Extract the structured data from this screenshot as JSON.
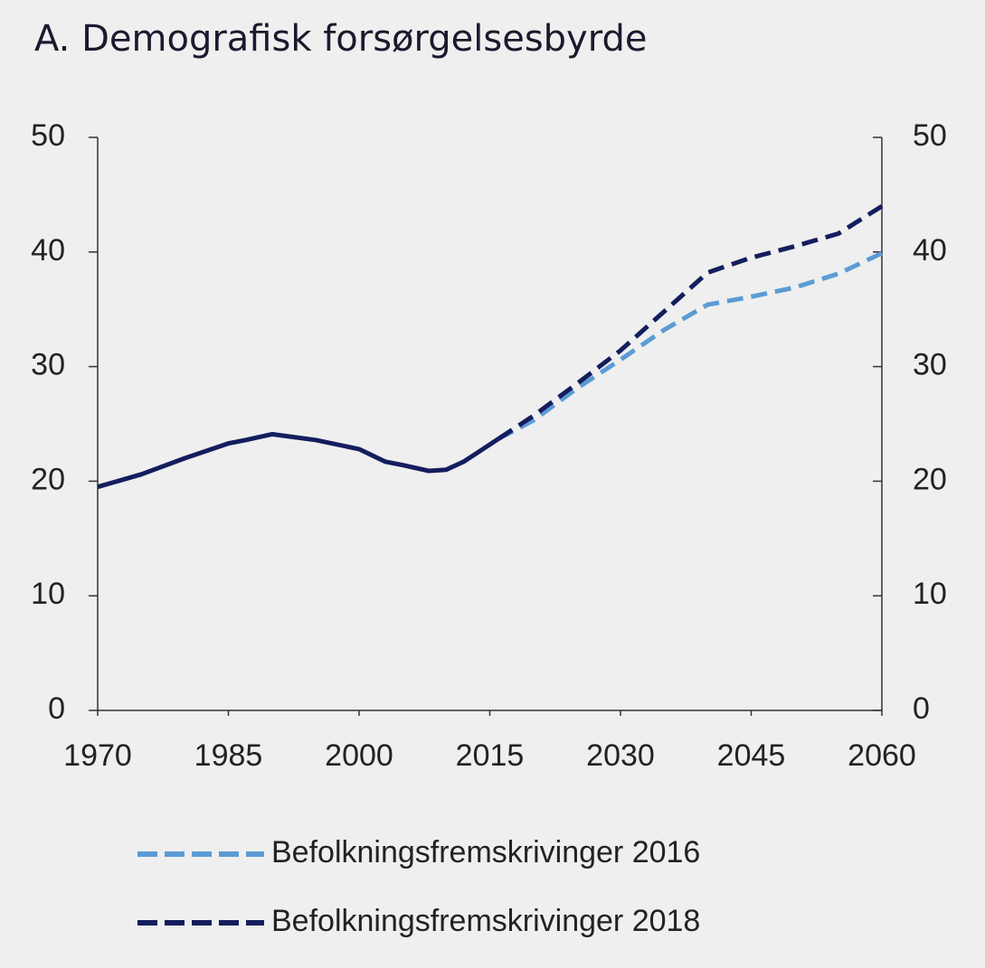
{
  "chart_data": {
    "type": "line",
    "title": "A.  Demografisk forsørgelsesbyrde",
    "x": [
      1970,
      1975,
      1980,
      1985,
      1987,
      1990,
      1995,
      2000,
      2003,
      2005,
      2008,
      2010,
      2012,
      2014,
      2016,
      2020,
      2025,
      2030,
      2035,
      2040,
      2045,
      2050,
      2055,
      2060
    ],
    "series": [
      {
        "color": "#141d5e",
        "dashed": false,
        "values": [
          19.5,
          20.6,
          22.0,
          23.3,
          23.6,
          24.1,
          23.6,
          22.8,
          21.7,
          21.4,
          20.9,
          21.0,
          21.7,
          22.7,
          23.7,
          null,
          null,
          null,
          null,
          null,
          null,
          null,
          null,
          null
        ]
      },
      {
        "name": "Befolkningsfremskrivinger 2016",
        "color": "#5b9bd5",
        "dashed": true,
        "values": [
          null,
          null,
          null,
          null,
          null,
          null,
          null,
          null,
          null,
          null,
          null,
          null,
          null,
          null,
          23.7,
          25.3,
          28.1,
          30.6,
          33.2,
          35.4,
          36.1,
          36.9,
          38.1,
          39.9
        ]
      },
      {
        "name": "Befolkningsfremskrivinger 2018",
        "color": "#141d5e",
        "dashed": true,
        "values": [
          null,
          null,
          null,
          null,
          null,
          null,
          null,
          null,
          null,
          null,
          null,
          null,
          null,
          null,
          23.7,
          25.7,
          28.5,
          31.4,
          34.8,
          38.2,
          39.5,
          40.5,
          41.6,
          44.0
        ]
      }
    ],
    "xlim": [
      1970,
      2060
    ],
    "xticks": [
      1970,
      1985,
      2000,
      2015,
      2030,
      2045,
      2060
    ],
    "ylim": [
      0,
      50
    ],
    "yticks": [
      0,
      10,
      20,
      30,
      40,
      50
    ],
    "y2lim": [
      0,
      50
    ],
    "y2ticks": [
      0,
      10,
      20,
      30,
      40,
      50
    ],
    "grid": false
  }
}
